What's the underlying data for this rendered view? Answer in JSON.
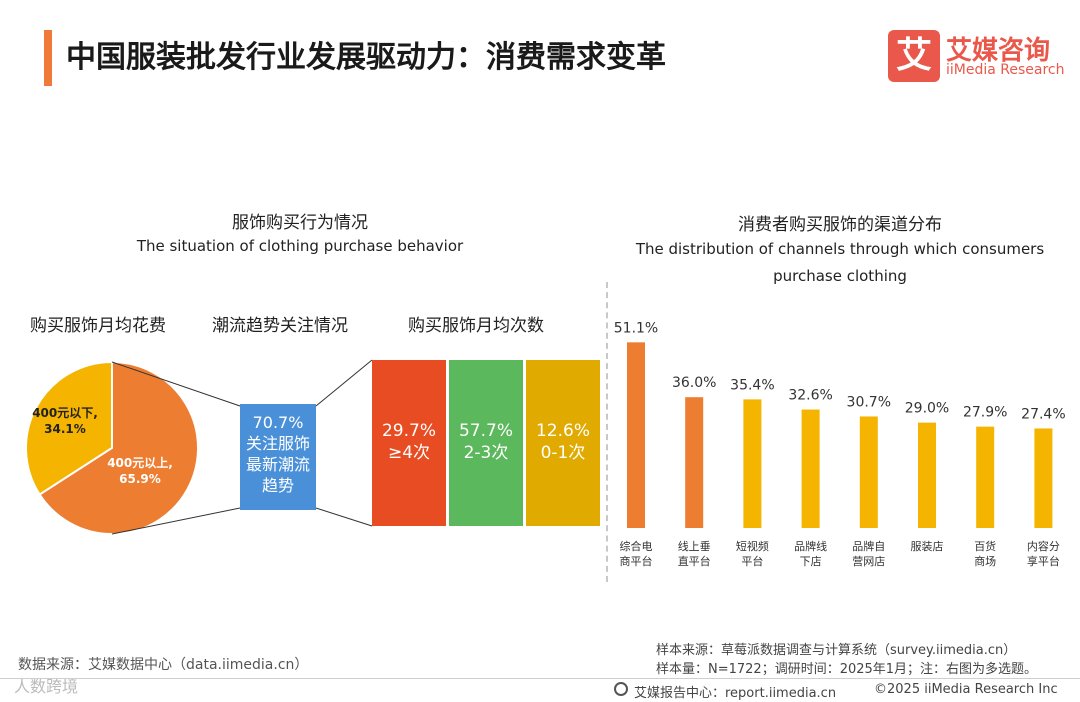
{
  "header": {
    "title": "中国服装批发行业发展驱动力：消费需求变革",
    "logo_mark": "艾",
    "logo_cn": "艾媒咨询",
    "logo_en": "iiMedia Research"
  },
  "left_section": {
    "title_cn": "服饰购买行为情况",
    "title_en": "The situation of clothing purchase behavior",
    "spend_heading": "购买服饰月均花费",
    "trend_heading": "潮流趋势关注情况",
    "freq_heading": "购买服饰月均次数",
    "pie": {
      "slices": [
        {
          "label": "400元以下,",
          "value_label": "34.1%",
          "value": 34.1,
          "color": "#f5b400"
        },
        {
          "label": "400元以上,",
          "value_label": "65.9%",
          "value": 65.9,
          "color": "#ed7d31"
        }
      ]
    },
    "trend_box": {
      "line1": "70.7%",
      "line2": "关注服饰",
      "line3": "最新潮流",
      "line4": "趋势"
    },
    "freq_boxes": [
      {
        "pct": "29.7%",
        "label": "≥4次",
        "color": "#e84c22"
      },
      {
        "pct": "57.7%",
        "label": "2-3次",
        "color": "#5cb85c"
      },
      {
        "pct": "12.6%",
        "label": "0-1次",
        "color": "#e0aa00"
      }
    ]
  },
  "right_section": {
    "title_cn": "消费者购买服饰的渠道分布",
    "title_en_line1": "The distribution of channels through which consumers",
    "title_en_line2": "purchase clothing"
  },
  "chart_data": {
    "type": "bar",
    "title": "消费者购买服饰的渠道分布",
    "categories": [
      [
        "综合电",
        "商平台"
      ],
      [
        "线上垂",
        "直平台"
      ],
      [
        "短视频",
        "平台"
      ],
      [
        "品牌线",
        "下店"
      ],
      [
        "品牌自",
        "营网店"
      ],
      [
        "服装店"
      ],
      [
        "百货",
        "商场"
      ],
      [
        "内容分",
        "享平台"
      ]
    ],
    "values": [
      51.1,
      36.0,
      35.4,
      32.6,
      30.7,
      29.0,
      27.9,
      27.4
    ],
    "value_labels": [
      "51.1%",
      "36.0%",
      "35.4%",
      "32.6%",
      "30.7%",
      "29.0%",
      "27.9%",
      "27.4%"
    ],
    "colors": [
      "#ed7d31",
      "#ed7d31",
      "#f5b400",
      "#f5b400",
      "#f5b400",
      "#f5b400",
      "#f5b400",
      "#f5b400"
    ],
    "ylim": [
      0,
      60
    ]
  },
  "footer": {
    "source_left": "数据来源：艾媒数据中心（data.iimedia.cn）",
    "sample_source": "样本来源：草莓派数据调查与计算系统（survey.iimedia.cn）",
    "sample_size": "样本量：N=1722；调研时间：2025年1月；注：右图为多选题。",
    "report_center": "艾媒报告中心：report.iimedia.cn",
    "copyright": "©2025  iiMedia Research  Inc",
    "watermark": "人数跨境"
  }
}
